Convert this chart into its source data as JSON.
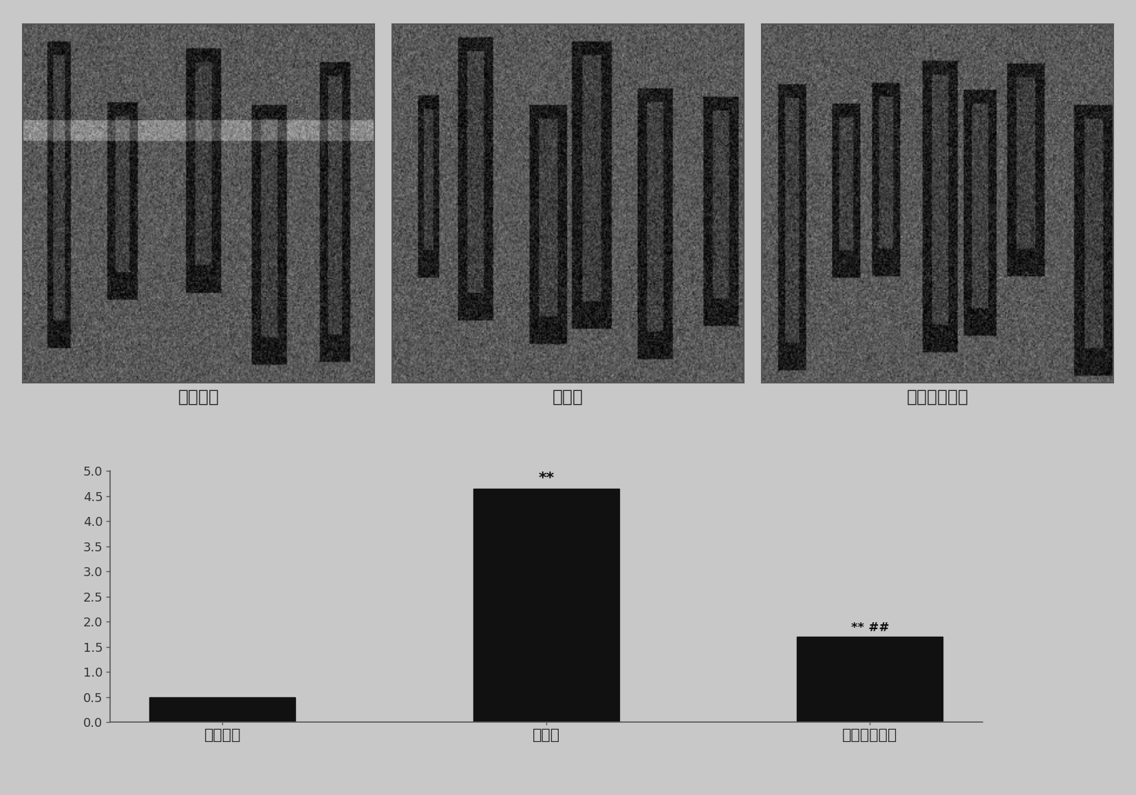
{
  "categories": [
    "假手术组",
    "对照组",
    "姜黄素治疗组"
  ],
  "values": [
    0.5,
    4.65,
    1.7
  ],
  "bar_color": "#111111",
  "bg_color": "#c8c8c8",
  "ylim": [
    0,
    5
  ],
  "yticks": [
    0,
    0.5,
    1,
    1.5,
    2,
    2.5,
    3,
    3.5,
    4,
    4.5,
    5
  ],
  "annotations": [
    {
      "bar_idx": 1,
      "text": "**",
      "fontsize": 16
    },
    {
      "bar_idx": 2,
      "text": "** ##",
      "fontsize": 13
    }
  ],
  "image_labels": [
    "假手术组",
    "对照组",
    "姜黄素治疗组"
  ],
  "figsize": [
    16.51,
    11.55
  ],
  "dpi": 100
}
